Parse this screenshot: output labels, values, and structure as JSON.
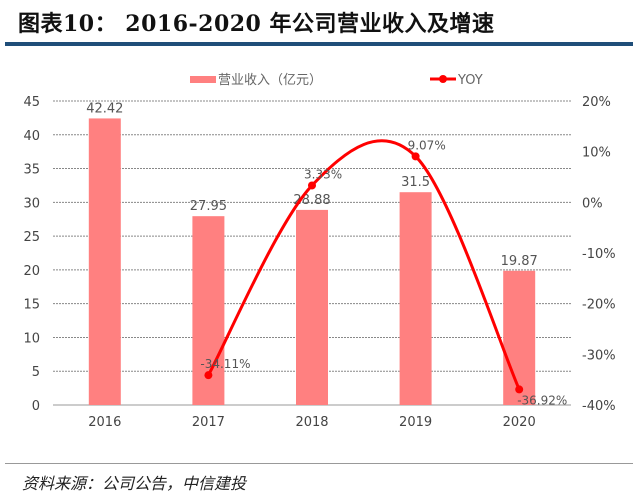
{
  "header": {
    "title": "图表10：  2016-2020 年公司营业收入及增速"
  },
  "footer": {
    "source": "资料来源：公司公告，中信建投"
  },
  "chart_data": {
    "type": "bar+line",
    "categories": [
      "2016",
      "2017",
      "2018",
      "2019",
      "2020"
    ],
    "series": [
      {
        "name": "营业收入（亿元）",
        "type": "bar",
        "axis": "left",
        "values": [
          42.42,
          27.95,
          28.88,
          31.5,
          19.87
        ],
        "labels": [
          "42.42",
          "27.95",
          "28.88",
          "31.5",
          "19.87"
        ],
        "color": "#FF8080"
      },
      {
        "name": "YOY",
        "type": "line",
        "smooth": true,
        "axis": "right",
        "values": [
          null,
          -34.11,
          3.33,
          9.07,
          -36.92
        ],
        "labels": [
          "",
          "-34.11%",
          "3.33%",
          "9.07%",
          "-36.92%"
        ],
        "color": "#FF0000"
      }
    ],
    "y_left": {
      "range": [
        0,
        45
      ],
      "ticks": [
        "0",
        "5",
        "10",
        "15",
        "20",
        "25",
        "30",
        "35",
        "40",
        "45"
      ]
    },
    "y_right": {
      "range": [
        -40,
        20
      ],
      "ticks": [
        "-40%",
        "-30%",
        "-20%",
        "-10%",
        "0%",
        "10%",
        "20%"
      ]
    },
    "grid": true,
    "legend": "top"
  }
}
